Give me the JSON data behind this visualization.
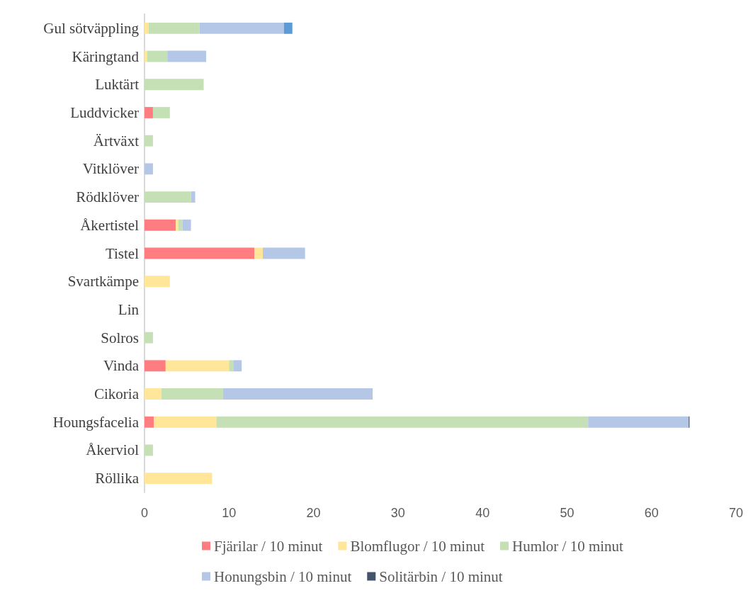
{
  "chart_data": {
    "type": "bar",
    "orientation": "horizontal",
    "stacked": true,
    "categories": [
      "Gul sötväppling",
      "Käringtand",
      "Luktärt",
      "Luddvicker",
      "Ärtväxt",
      "Vitklöver",
      "Rödklöver",
      "Åkertistel",
      "Tistel",
      "Svartkämpe",
      "Lin",
      "Solros",
      "Vinda",
      "Cikoria",
      "Houngsfacelia",
      "Åkerviol",
      "Röllika"
    ],
    "series": [
      {
        "name": "Fjärilar / 10 minut",
        "color": "#ff7c80",
        "values": [
          0,
          0,
          0,
          1.0,
          0,
          0,
          0,
          3.7,
          13.0,
          0,
          0,
          0,
          2.5,
          0,
          1.1,
          0,
          0
        ]
      },
      {
        "name": "Blomflugor / 10 minut",
        "color": "#ffe699",
        "values": [
          0.5,
          0.3,
          0,
          0,
          0,
          0,
          0,
          0.3,
          1.0,
          3.0,
          0,
          0,
          7.5,
          2.0,
          7.4,
          0,
          8.0
        ]
      },
      {
        "name": "Humlor / 10 minut",
        "color": "#c5e0b4",
        "values": [
          6.0,
          2.4,
          7.0,
          2.0,
          1.0,
          0,
          5.5,
          0.5,
          0,
          0,
          0,
          1.0,
          0.5,
          7.3,
          44.0,
          1.0,
          0
        ]
      },
      {
        "name": "Honungsbin / 10 minut",
        "color": "#b4c7e7",
        "values": [
          10.0,
          4.6,
          0,
          0,
          0,
          1.0,
          0.5,
          1.0,
          5.0,
          0,
          0,
          0,
          1.0,
          17.7,
          11.9,
          0,
          0
        ]
      },
      {
        "name": "Solitärbin / 10 minut",
        "color": "#44546a",
        "values": [
          0,
          0,
          0,
          0,
          0,
          0,
          0,
          0,
          0,
          0,
          0,
          0,
          0,
          0,
          0.1,
          0,
          0
        ]
      },
      {
        "color": "#5b9bd5",
        "values": [
          1.0,
          0,
          0,
          0,
          0,
          0,
          0,
          0,
          0,
          0,
          0,
          0,
          0,
          0,
          0,
          0,
          0
        ]
      }
    ],
    "xlim": [
      0,
      70
    ],
    "xticks": [
      0,
      10,
      20,
      30,
      40,
      50,
      60,
      70
    ],
    "grid": false,
    "legend": "bottom"
  }
}
